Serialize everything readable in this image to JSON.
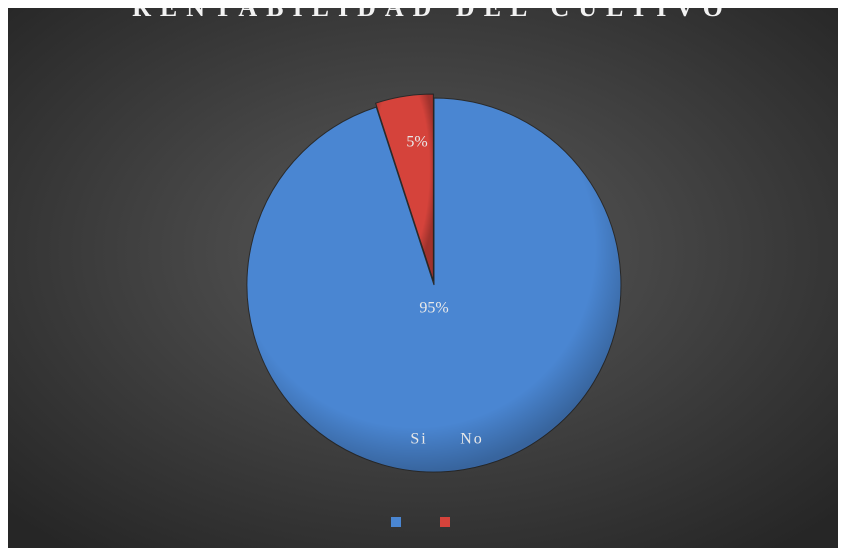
{
  "chart_data": {
    "type": "pie",
    "title": "RENTABILIDAD DEL CULTIVO",
    "categories": [
      "Si",
      "No"
    ],
    "values": [
      95,
      5
    ],
    "value_labels": [
      "95%",
      "5%"
    ],
    "colors": [
      "#4a86d2",
      "#d5433b"
    ]
  }
}
